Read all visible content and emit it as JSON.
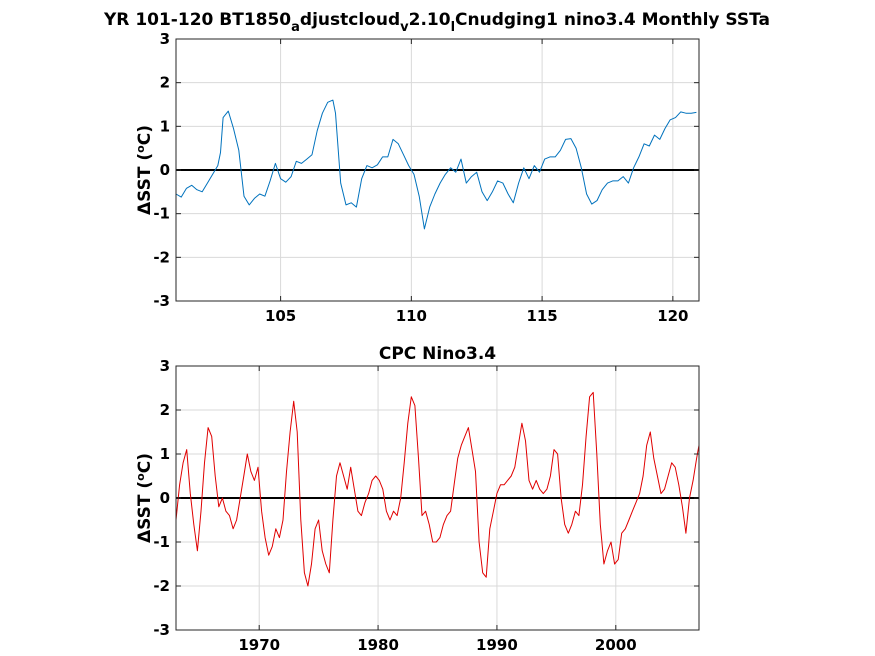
{
  "chart_data": [
    {
      "type": "line",
      "title_parts": [
        {
          "text": "YR 101-120 BT1850",
          "sub": false
        },
        {
          "text": "a",
          "sub": true
        },
        {
          "text": "djustcloud",
          "sub": false
        },
        {
          "text": "v",
          "sub": true
        },
        {
          "text": "2.10",
          "sub": false
        },
        {
          "text": "l",
          "sub": true
        },
        {
          "text": "Cnudging1 nino3.4 Monthly SSTa",
          "sub": false
        }
      ],
      "ylabel_prefix": "ΔSST (",
      "ylabel_sup": "o",
      "ylabel_suffix": "C)",
      "xlim": [
        101,
        121
      ],
      "ylim": [
        -3,
        3
      ],
      "xticks": [
        105,
        110,
        115,
        120
      ],
      "yticks": [
        -3,
        -2,
        -1,
        0,
        1,
        2,
        3
      ],
      "grid": true,
      "zero_line": true,
      "color": "#0072BD",
      "series": [
        {
          "x": [
            101.0,
            101.2,
            101.4,
            101.6,
            101.8,
            102.0,
            102.2,
            102.4,
            102.6,
            102.7,
            102.8,
            103.0,
            103.2,
            103.4,
            103.6,
            103.8,
            104.0,
            104.2,
            104.4,
            104.6,
            104.8,
            105.0,
            105.2,
            105.4,
            105.6,
            105.8,
            106.0,
            106.2,
            106.4,
            106.6,
            106.8,
            107.0,
            107.1,
            107.3,
            107.5,
            107.7,
            107.9,
            108.1,
            108.3,
            108.5,
            108.7,
            108.9,
            109.1,
            109.3,
            109.5,
            109.7,
            109.9,
            110.1,
            110.3,
            110.5,
            110.7,
            110.9,
            111.1,
            111.3,
            111.5,
            111.7,
            111.9,
            112.1,
            112.3,
            112.5,
            112.7,
            112.9,
            113.1,
            113.3,
            113.5,
            113.7,
            113.9,
            114.1,
            114.3,
            114.5,
            114.7,
            114.9,
            115.1,
            115.3,
            115.5,
            115.7,
            115.9,
            116.1,
            116.3,
            116.5,
            116.7,
            116.9,
            117.1,
            117.3,
            117.5,
            117.7,
            117.9,
            118.1,
            118.3,
            118.5,
            118.7,
            118.9,
            119.1,
            119.3,
            119.5,
            119.7,
            119.9,
            120.1,
            120.3,
            120.5,
            120.7,
            120.9
          ],
          "y": [
            -0.55,
            -0.62,
            -0.42,
            -0.35,
            -0.45,
            -0.5,
            -0.3,
            -0.1,
            0.1,
            0.4,
            1.2,
            1.35,
            0.95,
            0.45,
            -0.6,
            -0.8,
            -0.65,
            -0.55,
            -0.6,
            -0.25,
            0.15,
            -0.2,
            -0.28,
            -0.15,
            0.2,
            0.15,
            0.25,
            0.35,
            0.9,
            1.3,
            1.55,
            1.6,
            1.3,
            -0.3,
            -0.8,
            -0.75,
            -0.85,
            -0.2,
            0.1,
            0.05,
            0.12,
            0.3,
            0.3,
            0.7,
            0.6,
            0.35,
            0.1,
            -0.1,
            -0.6,
            -1.35,
            -0.85,
            -0.55,
            -0.3,
            -0.1,
            0.05,
            -0.05,
            0.25,
            -0.3,
            -0.15,
            -0.05,
            -0.5,
            -0.7,
            -0.5,
            -0.25,
            -0.3,
            -0.55,
            -0.75,
            -0.3,
            0.05,
            -0.2,
            0.1,
            -0.05,
            0.25,
            0.3,
            0.3,
            0.45,
            0.7,
            0.72,
            0.5,
            0.05,
            -0.55,
            -0.78,
            -0.7,
            -0.45,
            -0.3,
            -0.25,
            -0.25,
            -0.15,
            -0.3,
            0.05,
            0.3,
            0.6,
            0.55,
            0.8,
            0.7,
            0.95,
            1.15,
            1.2,
            1.33,
            1.3,
            1.3,
            1.32
          ]
        }
      ]
    },
    {
      "type": "line",
      "title": "CPC Nino3.4",
      "ylabel_prefix": "ΔSST (",
      "ylabel_sup": "o",
      "ylabel_suffix": "C)",
      "xlim": [
        1963,
        2007
      ],
      "ylim": [
        -3,
        3
      ],
      "xticks": [
        1970,
        1980,
        1990,
        2000
      ],
      "yticks": [
        -3,
        -2,
        -1,
        0,
        1,
        2,
        3
      ],
      "grid": true,
      "zero_line": true,
      "color": "#E00000",
      "series": [
        {
          "x": [
            1963.0,
            1963.3,
            1963.6,
            1963.9,
            1964.2,
            1964.5,
            1964.8,
            1965.1,
            1965.4,
            1965.7,
            1966.0,
            1966.3,
            1966.6,
            1966.9,
            1967.2,
            1967.5,
            1967.8,
            1968.1,
            1968.4,
            1968.7,
            1969.0,
            1969.3,
            1969.6,
            1969.9,
            1970.2,
            1970.5,
            1970.8,
            1971.1,
            1971.4,
            1971.7,
            1972.0,
            1972.3,
            1972.6,
            1972.9,
            1973.2,
            1973.5,
            1973.8,
            1974.1,
            1974.4,
            1974.7,
            1975.0,
            1975.3,
            1975.6,
            1975.9,
            1976.2,
            1976.5,
            1976.8,
            1977.1,
            1977.4,
            1977.7,
            1978.0,
            1978.3,
            1978.6,
            1978.9,
            1979.2,
            1979.5,
            1979.8,
            1980.1,
            1980.4,
            1980.7,
            1981.0,
            1981.3,
            1981.6,
            1981.9,
            1982.2,
            1982.5,
            1982.8,
            1983.1,
            1983.4,
            1983.7,
            1984.0,
            1984.3,
            1984.6,
            1984.9,
            1985.2,
            1985.5,
            1985.8,
            1986.1,
            1986.4,
            1986.7,
            1987.0,
            1987.3,
            1987.6,
            1987.9,
            1988.2,
            1988.5,
            1988.8,
            1989.1,
            1989.4,
            1989.7,
            1990.0,
            1990.3,
            1990.6,
            1990.9,
            1991.2,
            1991.5,
            1991.8,
            1992.1,
            1992.4,
            1992.7,
            1993.0,
            1993.3,
            1993.6,
            1993.9,
            1994.2,
            1994.5,
            1994.8,
            1995.1,
            1995.4,
            1995.7,
            1996.0,
            1996.3,
            1996.6,
            1996.9,
            1997.2,
            1997.5,
            1997.8,
            1998.1,
            1998.4,
            1998.7,
            1999.0,
            1999.3,
            1999.6,
            1999.9,
            2000.2,
            2000.5,
            2000.8,
            2001.1,
            2001.4,
            2001.7,
            2002.0,
            2002.3,
            2002.6,
            2002.9,
            2003.2,
            2003.5,
            2003.8,
            2004.1,
            2004.4,
            2004.7,
            2005.0,
            2005.3,
            2005.6,
            2005.9,
            2006.2,
            2006.5,
            2006.8,
            2007.0
          ],
          "y": [
            -0.5,
            0.3,
            0.8,
            1.1,
            0.1,
            -0.6,
            -1.2,
            -0.3,
            0.8,
            1.6,
            1.4,
            0.5,
            -0.2,
            0.0,
            -0.3,
            -0.4,
            -0.7,
            -0.5,
            0.0,
            0.5,
            1.0,
            0.6,
            0.4,
            0.7,
            -0.3,
            -0.9,
            -1.3,
            -1.1,
            -0.7,
            -0.9,
            -0.5,
            0.6,
            1.5,
            2.2,
            1.5,
            -0.5,
            -1.7,
            -2.0,
            -1.5,
            -0.7,
            -0.5,
            -1.2,
            -1.5,
            -1.7,
            -0.5,
            0.5,
            0.8,
            0.5,
            0.2,
            0.7,
            0.2,
            -0.3,
            -0.4,
            -0.1,
            0.1,
            0.4,
            0.5,
            0.4,
            0.2,
            -0.3,
            -0.5,
            -0.3,
            -0.4,
            0.0,
            0.8,
            1.7,
            2.3,
            2.1,
            0.9,
            -0.4,
            -0.3,
            -0.6,
            -1.0,
            -1.0,
            -0.9,
            -0.6,
            -0.4,
            -0.3,
            0.3,
            0.9,
            1.2,
            1.4,
            1.6,
            1.1,
            0.6,
            -1.0,
            -1.7,
            -1.8,
            -0.7,
            -0.3,
            0.1,
            0.3,
            0.3,
            0.4,
            0.5,
            0.7,
            1.2,
            1.7,
            1.3,
            0.4,
            0.2,
            0.4,
            0.2,
            0.1,
            0.2,
            0.5,
            1.1,
            1.0,
            0.0,
            -0.6,
            -0.8,
            -0.6,
            -0.3,
            -0.4,
            0.3,
            1.4,
            2.3,
            2.4,
            1.0,
            -0.6,
            -1.5,
            -1.2,
            -1.0,
            -1.5,
            -1.4,
            -0.8,
            -0.7,
            -0.5,
            -0.3,
            -0.1,
            0.1,
            0.5,
            1.2,
            1.5,
            0.9,
            0.5,
            0.1,
            0.2,
            0.5,
            0.8,
            0.7,
            0.3,
            -0.2,
            -0.8,
            0.0,
            0.4,
            0.9,
            1.2
          ]
        }
      ]
    }
  ]
}
